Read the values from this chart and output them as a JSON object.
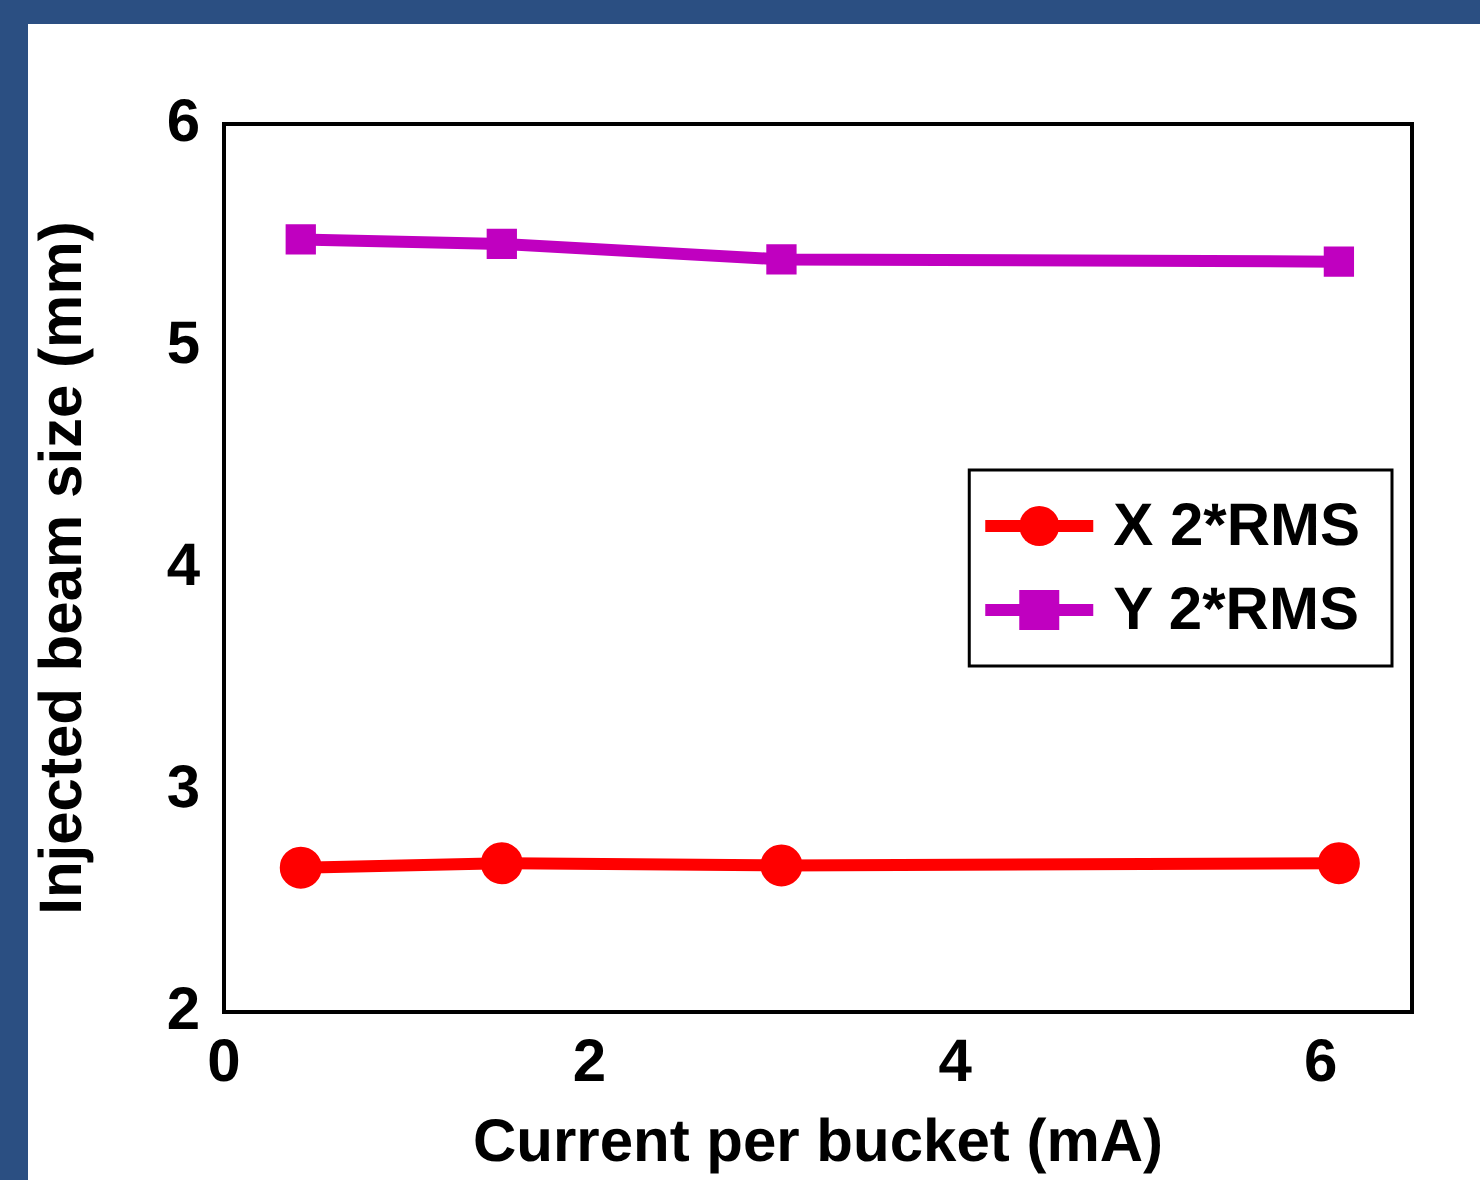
{
  "chart_data": {
    "type": "line",
    "xlabel": "Current per bucket (mA)",
    "ylabel": "Injected beam size (mm)",
    "xlim": [
      0,
      6.5
    ],
    "xticks": [
      0,
      2,
      4,
      6
    ],
    "ylim": [
      2,
      6
    ],
    "yticks": [
      2,
      3,
      4,
      5,
      6
    ],
    "grid": false,
    "legend": "right",
    "series": [
      {
        "name": "X 2*RMS",
        "color": "#ff0000",
        "marker": "circle",
        "x": [
          0.42,
          1.52,
          3.05,
          6.1
        ],
        "values": [
          2.65,
          2.67,
          2.66,
          2.67
        ]
      },
      {
        "name": "Y 2*RMS",
        "color": "#c000c0",
        "marker": "square",
        "x": [
          0.42,
          1.52,
          3.05,
          6.1
        ],
        "values": [
          5.48,
          5.46,
          5.39,
          5.38
        ]
      }
    ]
  }
}
